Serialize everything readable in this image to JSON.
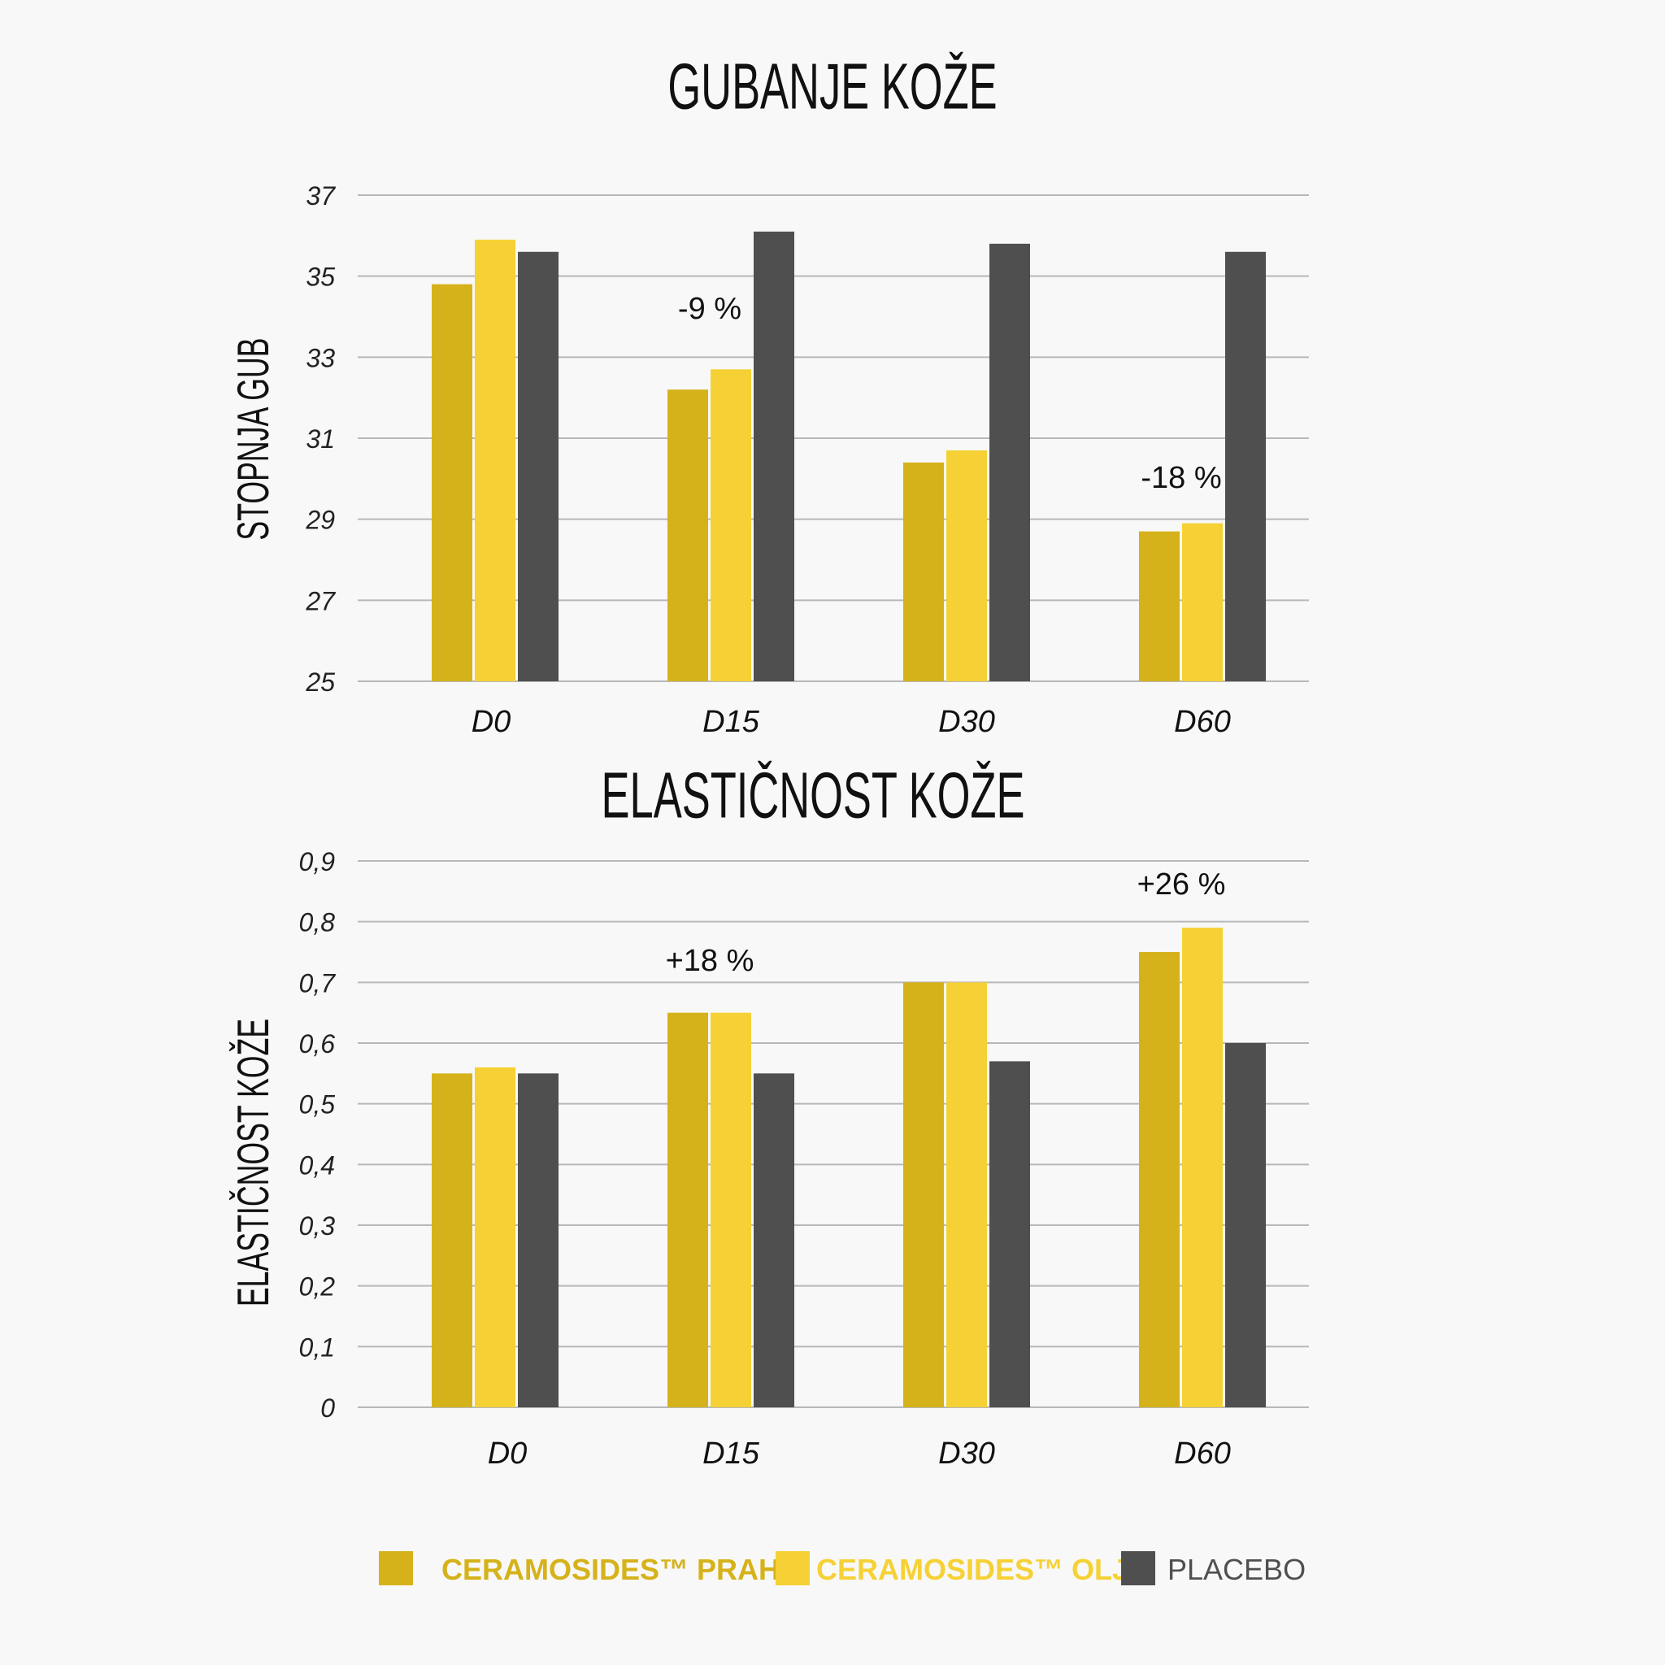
{
  "chart_data": [
    {
      "type": "bar",
      "title": "GUBANJE KOŽE",
      "ylabel": "STOPNJA GUB",
      "xlabel": "",
      "categories": [
        "D0",
        "D15",
        "D30",
        "D60"
      ],
      "ylim": [
        25,
        37
      ],
      "yticks": [
        "25",
        "27",
        "29",
        "31",
        "33",
        "35",
        "37"
      ],
      "grid": true,
      "series": [
        {
          "name": "CERAMOSIDES™ PRAH",
          "values": [
            34.8,
            32.2,
            30.4,
            28.7
          ]
        },
        {
          "name": "CERAMOSIDES™ OLJE",
          "values": [
            35.9,
            32.7,
            30.7,
            28.9
          ]
        },
        {
          "name": "PLACEBO",
          "values": [
            35.6,
            36.1,
            35.8,
            35.6
          ]
        }
      ],
      "annotations": [
        {
          "text": "-9 %",
          "category": "D15"
        },
        {
          "text": "-18 %",
          "category": "D60"
        }
      ]
    },
    {
      "type": "bar",
      "title": "ELASTIČNOST KOŽE",
      "ylabel": "ELASTIČNOST KOŽE",
      "xlabel": "",
      "categories": [
        "D0",
        "D15",
        "D30",
        "D60"
      ],
      "ylim": [
        0,
        0.9
      ],
      "yticks": [
        "0",
        "0,1",
        "0,2",
        "0,3",
        "0,4",
        "0,5",
        "0,6",
        "0,7",
        "0,8",
        "0,9"
      ],
      "grid": true,
      "series": [
        {
          "name": "CERAMOSIDES™ PRAH",
          "values": [
            0.55,
            0.65,
            0.7,
            0.75
          ]
        },
        {
          "name": "CERAMOSIDES™ OLJE",
          "values": [
            0.56,
            0.65,
            0.7,
            0.79
          ]
        },
        {
          "name": "PLACEBO",
          "values": [
            0.55,
            0.55,
            0.57,
            0.6
          ]
        }
      ],
      "annotations": [
        {
          "text": "+18 %",
          "category": "D15"
        },
        {
          "text": "+26 %",
          "category": "D60"
        }
      ]
    }
  ],
  "legend": {
    "position": "bottom",
    "items": [
      {
        "label": "CERAMOSIDES™ PRAH",
        "color": "#d6b21a"
      },
      {
        "label": "CERAMOSIDES™ OLJE",
        "color": "#f6d135"
      },
      {
        "label": "PLACEBO",
        "color": "#4f4f4f"
      }
    ]
  }
}
